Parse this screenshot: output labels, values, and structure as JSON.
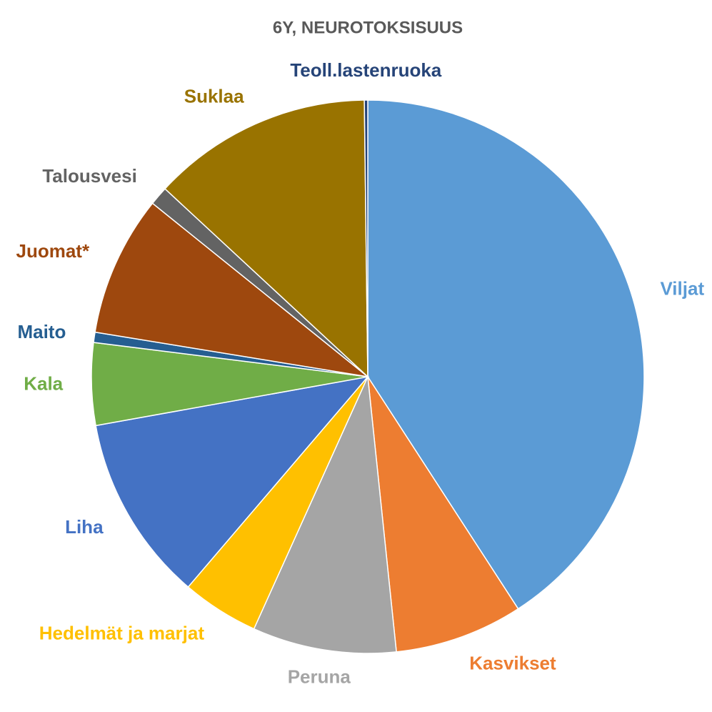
{
  "chart_data": {
    "type": "pie",
    "title": "6Y, NEUROTOKSISUUS",
    "categories": [
      "Viljat",
      "Kasvikset",
      "Peruna",
      "Hedelmät ja marjat",
      "Liha",
      "Kala",
      "Maito",
      "Juomat*",
      "Talousvesi",
      "Suklaa",
      "Teoll.lastenruoka"
    ],
    "values": [
      40.8,
      7.5,
      8.4,
      4.5,
      10.9,
      4.8,
      0.6,
      8.2,
      1.1,
      12.9,
      0.2
    ],
    "colors": [
      "#5b9bd5",
      "#ed7d31",
      "#a5a5a5",
      "#ffc000",
      "#4472c4",
      "#70ad47",
      "#255e91",
      "#9e480e",
      "#636363",
      "#997300",
      "#264478"
    ]
  }
}
